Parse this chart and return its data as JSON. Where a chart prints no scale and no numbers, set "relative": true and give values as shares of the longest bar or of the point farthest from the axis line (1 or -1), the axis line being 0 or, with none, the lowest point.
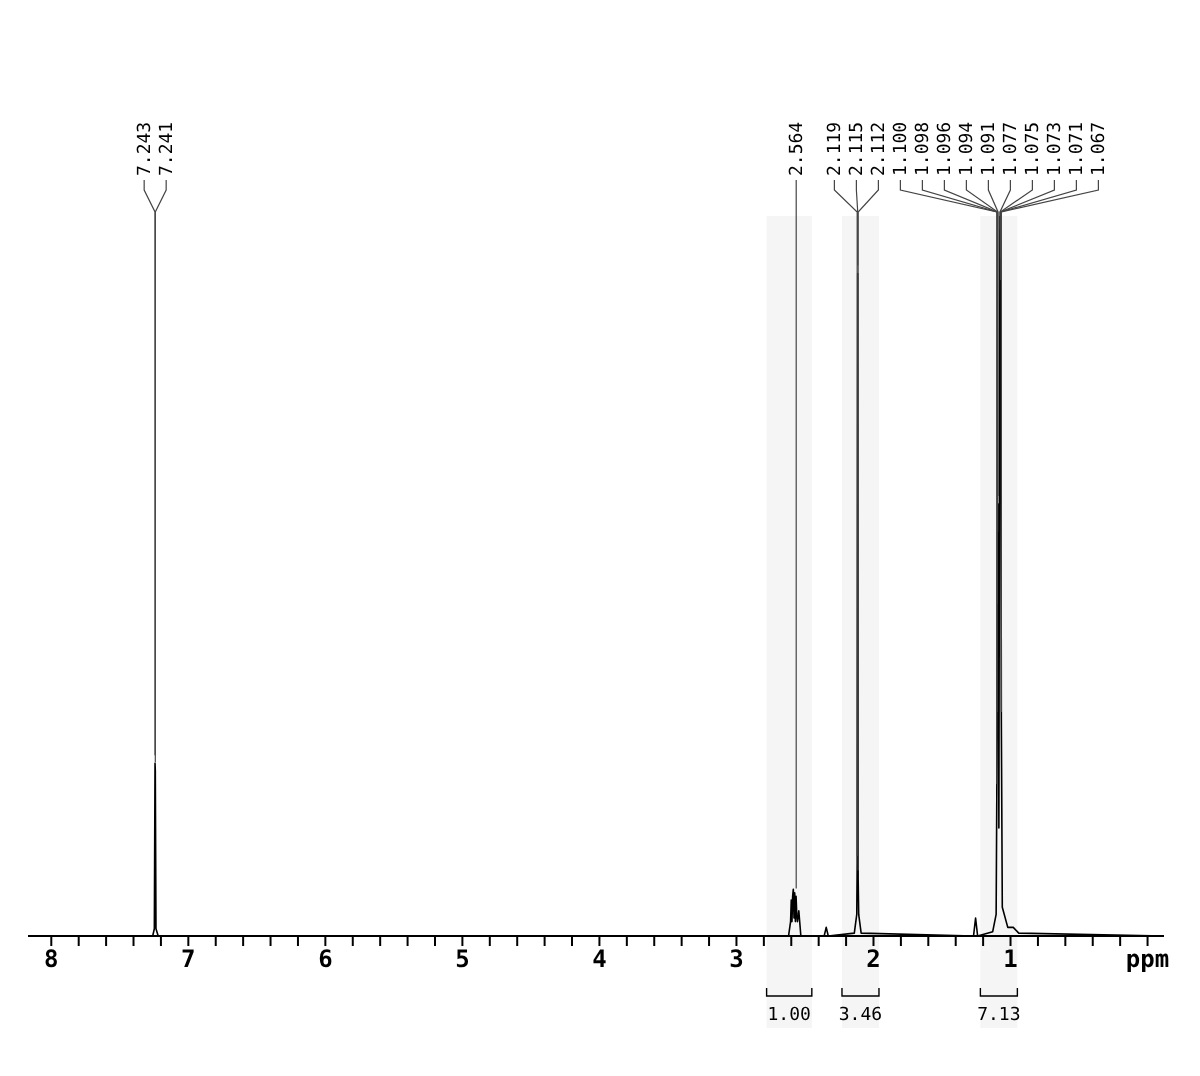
{
  "chart_data": {
    "type": "line",
    "relative": true,
    "xlim": [
      8.17,
      -0.12
    ],
    "xticks": [
      8,
      {
        "value": 7.8,
        "label": null
      },
      {
        "value": 7.6,
        "label": null
      },
      {
        "value": 7.4,
        "label": null
      },
      {
        "value": 7.2,
        "label": null
      },
      7,
      {
        "value": 6.8,
        "label": null
      },
      {
        "value": 6.6,
        "label": null
      },
      {
        "value": 6.4,
        "label": null
      },
      {
        "value": 6.2,
        "label": null
      },
      6,
      {
        "value": 5.8,
        "label": null
      },
      {
        "value": 5.6,
        "label": null
      },
      {
        "value": 5.4,
        "label": null
      },
      {
        "value": 5.2,
        "label": null
      },
      5,
      {
        "value": 4.8,
        "label": null
      },
      {
        "value": 4.6,
        "label": null
      },
      {
        "value": 4.4,
        "label": null
      },
      {
        "value": 4.2,
        "label": null
      },
      4,
      {
        "value": 3.8,
        "label": null
      },
      {
        "value": 3.6,
        "label": null
      },
      {
        "value": 3.4,
        "label": null
      },
      {
        "value": 3.2,
        "label": null
      },
      3,
      {
        "value": 2.8,
        "label": null
      },
      {
        "value": 2.6,
        "label": null
      },
      {
        "value": 2.4,
        "label": null
      },
      {
        "value": 2.2,
        "label": null
      },
      2,
      {
        "value": 1.8,
        "label": null
      },
      {
        "value": 1.6,
        "label": null
      },
      {
        "value": 1.4,
        "label": null
      },
      {
        "value": 1.2,
        "label": null
      },
      1,
      {
        "value": 0.8,
        "label": null
      },
      {
        "value": 0.6,
        "label": null
      },
      {
        "value": 0.4,
        "label": null
      },
      {
        "value": 0.2,
        "label": null
      },
      {
        "value": 0,
        "label": "ppm"
      }
    ],
    "tick_labels": "x",
    "marker": "none",
    "line_style": "solid",
    "bands": [
      {
        "axis": "x",
        "from": 2.78,
        "to": 2.45,
        "label": "1.00",
        "color": "#eeeeee"
      },
      {
        "axis": "x",
        "from": 2.23,
        "to": 1.96,
        "label": "3.46",
        "color": "#eeeeee"
      },
      {
        "axis": "x",
        "from": 1.22,
        "to": 0.95,
        "label": "7.13",
        "color": "#eeeeee"
      }
    ],
    "series": [
      {
        "color": "#000000",
        "x": [
          8.17,
          7.26,
          7.248,
          7.243,
          7.241,
          7.236,
          7.22,
          2.62,
          2.605,
          2.6,
          2.595,
          2.59,
          2.585,
          2.58,
          2.575,
          2.57,
          2.565,
          2.56,
          2.555,
          2.545,
          2.53,
          2.36,
          2.345,
          2.33,
          2.14,
          2.122,
          2.119,
          2.115,
          2.112,
          2.108,
          2.09,
          1.27,
          1.255,
          1.24,
          1.13,
          1.105,
          1.1,
          1.098,
          1.096,
          1.094,
          1.091,
          1.085,
          1.077,
          1.075,
          1.073,
          1.071,
          1.067,
          1.06,
          1.02,
          0.98,
          0.94,
          -0.12
        ],
        "values": [
          0,
          0,
          0.01,
          0.24,
          0.23,
          0.01,
          0,
          0,
          0.02,
          0.05,
          0.02,
          0.055,
          0.065,
          0.025,
          0.06,
          0.02,
          0.055,
          0.03,
          0.02,
          0.035,
          0,
          0,
          0.012,
          0,
          0.004,
          0.03,
          0.1,
          0.92,
          0.08,
          0.03,
          0.004,
          0,
          0.025,
          0,
          0.006,
          0.03,
          0.2,
          0.3,
          0.45,
          0.55,
          0.6,
          0.15,
          1,
          0.97,
          0.93,
          0.9,
          0.3,
          0.04,
          0.012,
          0.012,
          0.004,
          0
        ]
      }
    ],
    "annotations": [
      {
        "text": "7.243",
        "x": 7.243,
        "y": 0.24
      },
      {
        "text": "7.241",
        "x": 7.241,
        "y": 0.23
      },
      {
        "text": "2.564",
        "x": 2.564,
        "y": 0.055
      },
      {
        "text": "2.119",
        "x": 2.119,
        "y": 0.1
      },
      {
        "text": "2.115",
        "x": 2.115,
        "y": 0.92
      },
      {
        "text": "2.112",
        "x": 2.112,
        "y": 0.08
      },
      {
        "text": "1.100",
        "x": 1.1,
        "y": 0.2
      },
      {
        "text": "1.098",
        "x": 1.098,
        "y": 0.3
      },
      {
        "text": "1.096",
        "x": 1.096,
        "y": 0.45
      },
      {
        "text": "1.094",
        "x": 1.094,
        "y": 0.55
      },
      {
        "text": "1.091",
        "x": 1.091,
        "y": 0.6
      },
      {
        "text": "1.077",
        "x": 1.077,
        "y": 1
      },
      {
        "text": "1.075",
        "x": 1.075,
        "y": 0.97
      },
      {
        "text": "1.073",
        "x": 1.073,
        "y": 0.93
      },
      {
        "text": "1.071",
        "x": 1.071,
        "y": 0.9
      },
      {
        "text": "1.067",
        "x": 1.067,
        "y": 0.3
      }
    ]
  }
}
